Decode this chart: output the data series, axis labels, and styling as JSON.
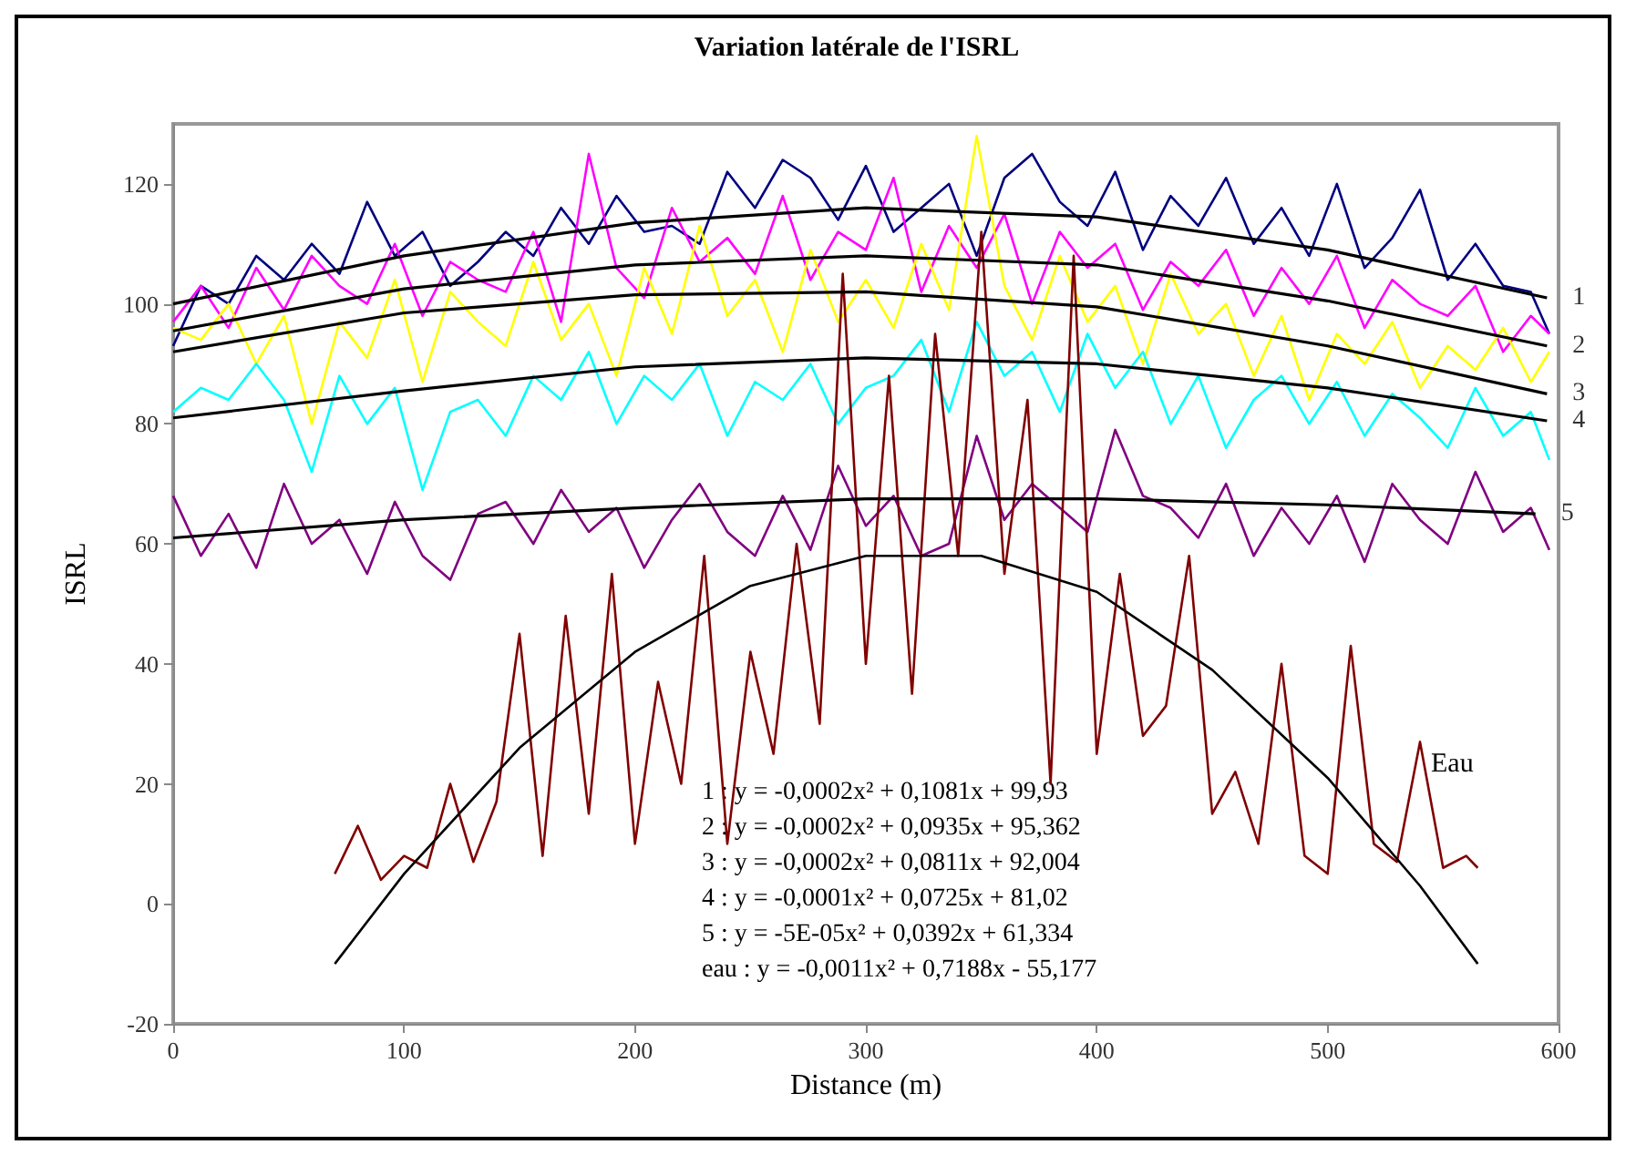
{
  "chart_data": {
    "type": "line",
    "title": "Variation latérale de l'ISRL",
    "xlabel": "Distance (m)",
    "ylabel": "ISRL",
    "xlim": [
      0,
      600
    ],
    "xticks": [
      0,
      100,
      200,
      300,
      400,
      500,
      600
    ],
    "ylim": [
      -20,
      130
    ],
    "yticks": [
      -20,
      0,
      20,
      40,
      60,
      80,
      100,
      120
    ],
    "x": [
      0,
      12,
      24,
      36,
      48,
      60,
      72,
      84,
      96,
      108,
      120,
      132,
      144,
      156,
      168,
      180,
      192,
      204,
      216,
      228,
      240,
      252,
      264,
      276,
      288,
      300,
      312,
      324,
      336,
      348,
      360,
      372,
      384,
      396,
      408,
      420,
      432,
      444,
      456,
      468,
      480,
      492,
      504,
      516,
      528,
      540,
      552,
      564,
      576,
      588,
      596
    ],
    "series": [
      {
        "color": "#000080",
        "values": [
          93,
          103,
          100,
          108,
          104,
          110,
          105,
          117,
          108,
          112,
          103,
          107,
          112,
          108,
          116,
          110,
          118,
          112,
          113,
          110,
          122,
          116,
          124,
          121,
          114,
          123,
          112,
          116,
          120,
          108,
          121,
          125,
          117,
          113,
          122,
          109,
          118,
          113,
          121,
          110,
          116,
          108,
          120,
          106,
          111,
          119,
          104,
          110,
          103,
          102,
          95
        ]
      },
      {
        "color": "#ff00ff",
        "values": [
          97,
          103,
          96,
          106,
          99,
          108,
          103,
          100,
          110,
          98,
          107,
          104,
          102,
          112,
          97,
          125,
          106,
          101,
          116,
          107,
          111,
          105,
          118,
          104,
          112,
          109,
          121,
          102,
          113,
          106,
          115,
          100,
          112,
          106,
          110,
          99,
          107,
          103,
          109,
          98,
          106,
          100,
          108,
          96,
          104,
          100,
          98,
          103,
          92,
          98,
          95
        ]
      },
      {
        "color": "#ffff00",
        "values": [
          96,
          94,
          100,
          90,
          98,
          80,
          97,
          91,
          104,
          87,
          102,
          97,
          93,
          107,
          94,
          100,
          88,
          106,
          95,
          113,
          98,
          104,
          92,
          109,
          97,
          104,
          96,
          110,
          99,
          128,
          103,
          94,
          108,
          97,
          103,
          90,
          105,
          95,
          100,
          88,
          98,
          84,
          95,
          90,
          97,
          86,
          93,
          89,
          96,
          87,
          92
        ]
      },
      {
        "color": "#00ffff",
        "values": [
          82,
          86,
          84,
          90,
          84,
          72,
          88,
          80,
          86,
          69,
          82,
          84,
          78,
          88,
          84,
          92,
          80,
          88,
          84,
          90,
          78,
          87,
          84,
          90,
          80,
          86,
          88,
          94,
          82,
          97,
          88,
          92,
          82,
          95,
          86,
          92,
          80,
          88,
          76,
          84,
          88,
          80,
          87,
          78,
          85,
          81,
          76,
          86,
          78,
          82,
          74
        ]
      },
      {
        "color": "#800080",
        "values": [
          68,
          58,
          65,
          56,
          70,
          60,
          64,
          55,
          67,
          58,
          54,
          65,
          67,
          60,
          69,
          62,
          66,
          56,
          64,
          70,
          62,
          58,
          68,
          59,
          73,
          63,
          68,
          58,
          60,
          78,
          64,
          70,
          66,
          62,
          79,
          68,
          66,
          61,
          70,
          58,
          66,
          60,
          68,
          57,
          70,
          64,
          60,
          72,
          62,
          66,
          59
        ]
      },
      {
        "color": "#800000",
        "x": [
          70,
          80,
          90,
          100,
          110,
          120,
          130,
          140,
          150,
          160,
          170,
          180,
          190,
          200,
          210,
          220,
          230,
          240,
          250,
          260,
          270,
          280,
          290,
          300,
          310,
          320,
          330,
          340,
          350,
          360,
          370,
          380,
          390,
          400,
          410,
          420,
          430,
          440,
          450,
          460,
          470,
          480,
          490,
          500,
          510,
          520,
          530,
          540,
          550,
          560,
          565
        ],
        "values": [
          5,
          13,
          4,
          8,
          6,
          20,
          7,
          17,
          45,
          8,
          48,
          15,
          55,
          10,
          37,
          20,
          58,
          10,
          42,
          25,
          60,
          30,
          105,
          40,
          88,
          35,
          95,
          58,
          112,
          55,
          84,
          20,
          108,
          25,
          55,
          28,
          33,
          58,
          15,
          22,
          10,
          40,
          8,
          5,
          43,
          10,
          7,
          27,
          6,
          8,
          6
        ]
      },
      {
        "name": "1",
        "color": "#000000",
        "x": [
          0,
          100,
          200,
          300,
          400,
          500,
          595
        ],
        "values": [
          100,
          108,
          113.5,
          116,
          114.5,
          109,
          101
        ]
      },
      {
        "name": "2",
        "color": "#000000",
        "x": [
          0,
          100,
          200,
          300,
          400,
          500,
          595
        ],
        "values": [
          95.5,
          102.5,
          106.5,
          108,
          106.5,
          100.5,
          93
        ]
      },
      {
        "name": "3",
        "color": "#000000",
        "x": [
          0,
          100,
          200,
          300,
          400,
          500,
          595
        ],
        "values": [
          92,
          98.5,
          101.5,
          102,
          99.5,
          93,
          85
        ]
      },
      {
        "name": "4",
        "color": "#000000",
        "x": [
          0,
          100,
          200,
          300,
          400,
          500,
          595
        ],
        "values": [
          81,
          85.5,
          89.5,
          91,
          90,
          86,
          80.5
        ]
      },
      {
        "name": "5",
        "color": "#000000",
        "x": [
          0,
          100,
          200,
          300,
          400,
          500,
          590
        ],
        "values": [
          61,
          64,
          66,
          67.5,
          67.5,
          66.5,
          65
        ]
      },
      {
        "color": "#000000",
        "x": [
          70,
          100,
          150,
          200,
          250,
          300,
          350,
          400,
          450,
          500,
          540,
          565
        ],
        "values": [
          -10,
          5,
          26,
          42,
          53,
          58,
          58,
          52,
          39,
          21,
          3,
          -10
        ]
      }
    ],
    "annotations": [
      "Eau",
      "1 : y = -0,0002x² + 0,1081x + 99,93",
      "2 : y = -0,0002x² + 0,0935x + 95,362",
      "3 : y = -0,0002x² + 0,0811x + 92,004",
      "4 : y = -0,0001x² + 0,0725x + 81,02",
      "5 : y = -5E-05x² + 0,0392x + 61,334",
      "eau : y = -0,0011x² + 0,7188x - 55,177"
    ]
  }
}
